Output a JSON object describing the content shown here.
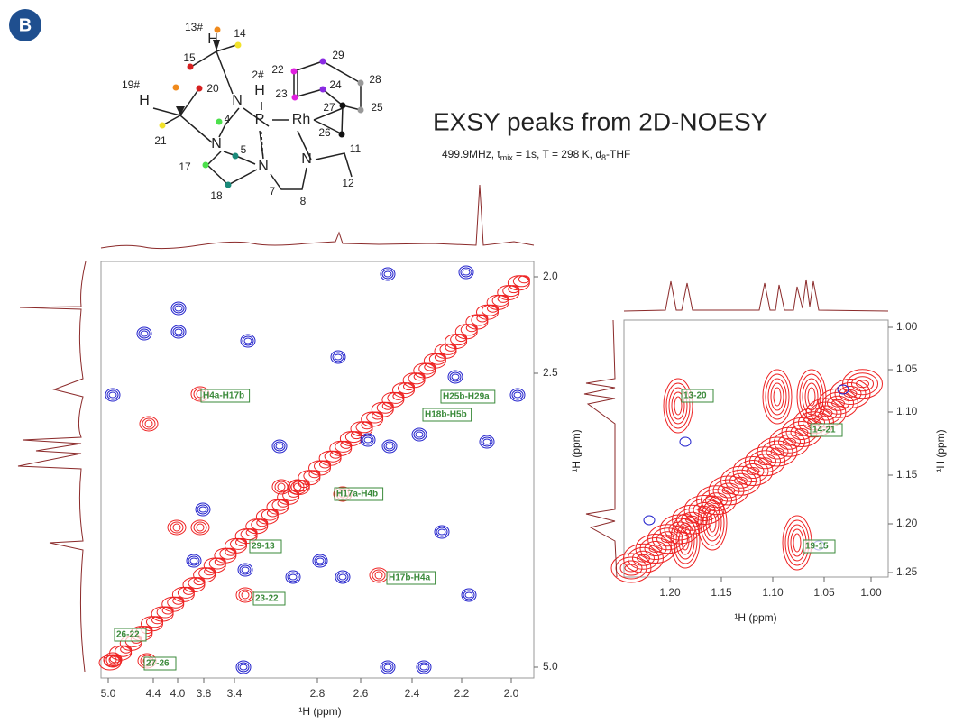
{
  "panel_label": "B",
  "title": "EXSY peaks from 2D-NOESY",
  "subtitle": {
    "a": "499.9MHz, t",
    "b": "mix",
    "c": " = 1s, T = 298 K, d",
    "d": "8",
    "e": "-THF"
  },
  "molecule": {
    "atoms": [
      "H",
      "N",
      "H",
      "P",
      "Rh",
      "N",
      "H",
      "N",
      "N"
    ],
    "labels": [
      "13#",
      "14",
      "15",
      "2#",
      "19#",
      "20",
      "22",
      "29",
      "23",
      "24",
      "28",
      "4",
      "27",
      "25",
      "5",
      "26",
      "11",
      "21",
      "17",
      "18",
      "7",
      "8",
      "12"
    ]
  },
  "main_plot": {
    "x_label": "¹H (ppm)",
    "xticks": [
      "5.0",
      "4.4",
      "4.0",
      "3.8",
      "3.4",
      "2.8",
      "2.6",
      "2.4",
      "2.2",
      "2.0"
    ],
    "yticks": [
      "2.0",
      "2.5",
      "5.0"
    ],
    "peaks": [
      "H4a-H17b",
      "H17a-H4b",
      "H17b-H4a",
      "H18b-H5b",
      "H25b-H29a",
      "23-22",
      "29-13",
      "26-22",
      "27-26"
    ]
  },
  "inset_plot": {
    "x_label": "¹H (ppm)",
    "y_label": "¹H (ppm)",
    "xticks": [
      "1.20",
      "1.15",
      "1.10",
      "1.05",
      "1.00"
    ],
    "yticks": [
      "1.00",
      "1.05",
      "1.10",
      "1.15",
      "1.20",
      "1.25"
    ],
    "peaks": [
      "13-20",
      "14-21",
      "19-15"
    ]
  }
}
